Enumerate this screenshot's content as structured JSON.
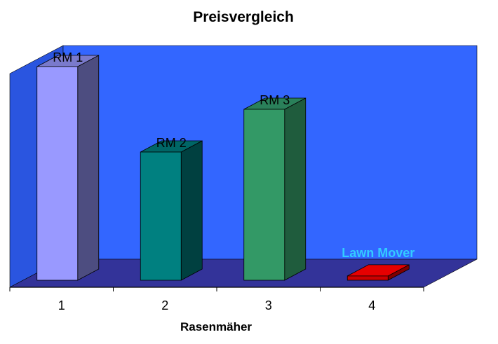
{
  "chart_data": {
    "type": "bar",
    "title": "Preisvergleich",
    "xlabel": "Rasenmäher",
    "ylabel": "",
    "categories": [
      "1",
      "2",
      "3",
      "4"
    ],
    "values": [
      100,
      60,
      80,
      2
    ],
    "ylim": [
      0,
      100
    ],
    "data_labels": [
      "RM 1",
      "RM 2",
      "RM 3",
      "Lawn Mover"
    ],
    "grid": false,
    "legend": "none",
    "style": "3d-column",
    "colors": {
      "bars": [
        "#9999ff",
        "#008080",
        "#339966",
        "#cc0000"
      ],
      "bar_sides": [
        "#4d4d80",
        "#004040",
        "#1f5c3d",
        "#800000"
      ],
      "bar_tops": [
        "#7a7acc",
        "#006666",
        "#2a805a",
        "#e60000"
      ],
      "back_wall": "#3366ff",
      "side_wall": "#2a55e0",
      "floor": "#333399",
      "label_highlight": "#33ccff"
    }
  }
}
